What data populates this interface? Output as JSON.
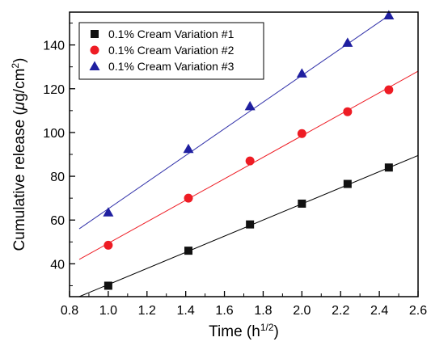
{
  "chart_data": {
    "type": "scatter",
    "xlabel": "Time (h",
    "xlabel_sup": "1/2",
    "xlabel_tail": ")",
    "ylabel": "Cumulative release (",
    "ylabel_unit_mu": "μ",
    "ylabel_unit_rest": "g/cm",
    "ylabel_sup": "2",
    "ylabel_tail": ")",
    "xlim": [
      0.8,
      2.6
    ],
    "ylim": [
      25,
      155
    ],
    "x_ticks": [
      "0.8",
      "1.0",
      "1.2",
      "1.4",
      "1.6",
      "1.8",
      "2.0",
      "2.2",
      "2.4",
      "2.6"
    ],
    "y_ticks": [
      "40",
      "60",
      "80",
      "100",
      "120",
      "140"
    ],
    "grid": false,
    "legend_position": "top-left",
    "series": [
      {
        "name": "0.1% Cream Variation #1",
        "marker": "square",
        "color": "#111111",
        "line_color": "#000000",
        "x": [
          1.0,
          1.414,
          1.732,
          2.0,
          2.236,
          2.449
        ],
        "y": [
          30,
          46,
          58,
          67.5,
          76.5,
          84
        ],
        "fit": {
          "x_start": 0.85,
          "x_end": 2.6,
          "y_start": 25,
          "y_end": 89.5
        }
      },
      {
        "name": "0.1% Cream Variation #2",
        "marker": "circle",
        "color": "#ee1c24",
        "line_color": "#ee1c24",
        "x": [
          1.0,
          1.414,
          1.732,
          2.0,
          2.236,
          2.449
        ],
        "y": [
          48.5,
          70,
          87,
          99.5,
          109.5,
          119.5
        ],
        "fit": {
          "x_start": 0.85,
          "x_end": 2.6,
          "y_start": 42,
          "y_end": 128
        }
      },
      {
        "name": "0.1% Cream Variation #3",
        "marker": "triangle",
        "color": "#1f1fa0",
        "line_color": "#3333aa",
        "x": [
          1.0,
          1.414,
          1.732,
          2.0,
          2.236,
          2.449
        ],
        "y": [
          63.5,
          92.5,
          112,
          127,
          141,
          153.5
        ],
        "fit": {
          "x_start": 0.85,
          "x_end": 2.45,
          "y_start": 56,
          "y_end": 153.5
        }
      }
    ]
  }
}
